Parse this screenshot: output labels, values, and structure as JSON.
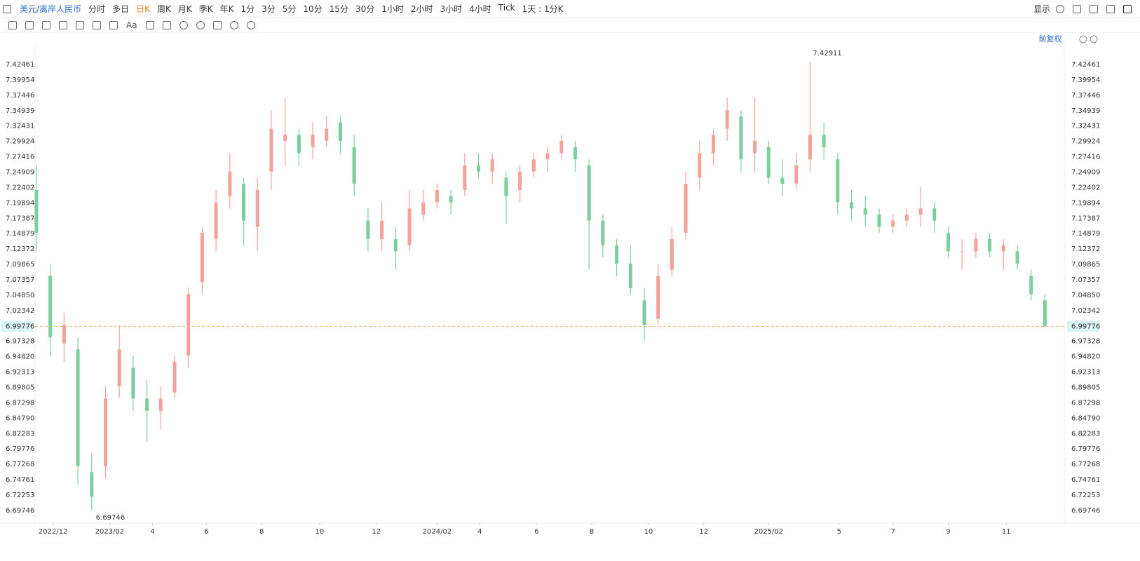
{
  "toolbar": {
    "symbol": "美元/离岸人民币",
    "periods": [
      "分时",
      "多日",
      "日K",
      "周K",
      "月K",
      "季K",
      "年K",
      "1分",
      "3分",
      "5分",
      "10分",
      "15分",
      "30分",
      "1小时",
      "2小时",
      "3小时",
      "4小时",
      "Tick",
      "1天 : 1分K"
    ],
    "display": "显示",
    "font_button": "Aa"
  },
  "chart_header": {
    "adjust": "前复权"
  },
  "chart_data": {
    "type": "candlestick",
    "up_color": "#f2a19b",
    "down_color": "#7ccf9c",
    "last_color": "#f0b87a",
    "open": [
      7.22,
      7.08,
      6.97,
      6.96,
      6.76,
      6.77,
      6.9,
      6.93,
      6.88,
      6.86,
      6.89,
      6.95,
      7.07,
      7.14,
      7.21,
      7.23,
      7.16,
      7.25,
      7.3,
      7.31,
      7.29,
      7.3,
      7.33,
      7.29,
      7.17,
      7.14,
      7.14,
      7.13,
      7.18,
      7.2,
      7.21,
      7.22,
      7.26,
      7.25,
      7.24,
      7.22,
      7.25,
      7.27,
      7.28,
      7.29,
      7.26,
      7.17,
      7.13,
      7.1,
      7.04,
      7.01,
      7.09,
      7.15,
      7.24,
      7.28,
      7.32,
      7.34,
      7.28,
      7.29,
      7.24,
      7.23,
      7.27,
      7.31,
      7.27,
      7.2,
      7.19,
      7.18,
      7.16,
      7.17,
      7.18,
      7.19,
      7.15,
      7.12,
      7.12,
      7.14,
      7.12,
      7.12,
      7.08,
      7.04
    ],
    "high": [
      7.26,
      7.1,
      7.02,
      6.98,
      6.79,
      6.9,
      7.0,
      6.95,
      6.91,
      6.9,
      6.95,
      7.06,
      7.16,
      7.22,
      7.28,
      7.24,
      7.24,
      7.35,
      7.37,
      7.32,
      7.33,
      7.34,
      7.34,
      7.31,
      7.19,
      7.2,
      7.16,
      7.22,
      7.22,
      7.23,
      7.22,
      7.28,
      7.28,
      7.28,
      7.25,
      7.26,
      7.28,
      7.29,
      7.31,
      7.3,
      7.27,
      7.18,
      7.14,
      7.13,
      7.06,
      7.1,
      7.16,
      7.25,
      7.3,
      7.32,
      7.37,
      7.35,
      7.37,
      7.3,
      7.27,
      7.28,
      7.42911,
      7.33,
      7.28,
      7.22,
      7.21,
      7.19,
      7.18,
      7.19,
      7.225,
      7.2,
      7.16,
      7.14,
      7.15,
      7.15,
      7.14,
      7.13,
      7.09,
      7.05
    ],
    "low": [
      7.12,
      6.95,
      6.94,
      6.74,
      6.69746,
      6.75,
      6.88,
      6.86,
      6.81,
      6.83,
      6.88,
      6.93,
      7.05,
      7.12,
      7.19,
      7.13,
      7.12,
      7.22,
      7.26,
      7.26,
      7.27,
      7.29,
      7.28,
      7.21,
      7.12,
      7.12,
      7.09,
      7.12,
      7.17,
      7.19,
      7.18,
      7.21,
      7.24,
      7.23,
      7.165,
      7.2,
      7.24,
      7.25,
      7.27,
      7.25,
      7.09,
      7.11,
      7.08,
      7.05,
      6.975,
      7.0,
      7.08,
      7.14,
      7.22,
      7.26,
      7.3,
      7.25,
      7.25,
      7.23,
      7.21,
      7.22,
      7.25,
      7.27,
      7.18,
      7.17,
      7.16,
      7.15,
      7.15,
      7.16,
      7.16,
      7.15,
      7.11,
      7.09,
      7.11,
      7.11,
      7.09,
      7.09,
      7.04,
      6.996
    ],
    "close": [
      7.15,
      6.98,
      7.0,
      6.77,
      6.72,
      6.88,
      6.96,
      6.88,
      6.86,
      6.88,
      6.94,
      7.05,
      7.15,
      7.2,
      7.25,
      7.17,
      7.22,
      7.32,
      7.31,
      7.28,
      7.31,
      7.32,
      7.3,
      7.23,
      7.14,
      7.17,
      7.12,
      7.19,
      7.2,
      7.22,
      7.2,
      7.26,
      7.25,
      7.27,
      7.21,
      7.25,
      7.27,
      7.28,
      7.3,
      7.27,
      7.17,
      7.13,
      7.1,
      7.06,
      7.0,
      7.08,
      7.14,
      7.23,
      7.28,
      7.31,
      7.35,
      7.27,
      7.3,
      7.24,
      7.23,
      7.26,
      7.31,
      7.29,
      7.2,
      7.19,
      7.18,
      7.16,
      7.17,
      7.18,
      7.19,
      7.17,
      7.12,
      7.12,
      7.14,
      7.12,
      7.13,
      7.1,
      7.05,
      6.99776
    ],
    "xlim": [
      -0.1,
      74.4
    ],
    "xticks": [
      {
        "value": 1.2,
        "label": "2022/12"
      },
      {
        "value": 5.3,
        "label": "2023/02"
      },
      {
        "value": 8.4,
        "label": "4"
      },
      {
        "value": 12.3,
        "label": "6"
      },
      {
        "value": 16.3,
        "label": "8"
      },
      {
        "value": 20.5,
        "label": "10"
      },
      {
        "value": 24.6,
        "label": "12"
      },
      {
        "value": 29.0,
        "label": "2024/02"
      },
      {
        "value": 32.1,
        "label": "4"
      },
      {
        "value": 36.2,
        "label": "6"
      },
      {
        "value": 40.2,
        "label": "8"
      },
      {
        "value": 44.3,
        "label": "10"
      },
      {
        "value": 48.3,
        "label": "12"
      },
      {
        "value": 53.0,
        "label": "2025/02"
      },
      {
        "value": 58.1,
        "label": "5"
      },
      {
        "value": 62.0,
        "label": "7"
      },
      {
        "value": 66.0,
        "label": "9"
      },
      {
        "value": 70.2,
        "label": "11"
      }
    ],
    "ylim": [
      6.678,
      7.452
    ],
    "yticks": [
      7.42461,
      7.39954,
      7.37446,
      7.34939,
      7.32431,
      7.29924,
      7.27416,
      7.24909,
      7.22402,
      7.19894,
      7.17387,
      7.14879,
      7.12372,
      7.09865,
      7.07357,
      {
        "value": 7.0485,
        "label": "7.04850"
      },
      7.02342,
      6.97328,
      {
        "value": 6.9482,
        "label": "6.94820"
      },
      6.92313,
      6.89805,
      6.87298,
      {
        "value": 6.8479,
        "label": "6.84790"
      },
      6.82283,
      6.79776,
      6.77268,
      6.74761,
      6.72253,
      6.69746
    ],
    "grid": false
  }
}
